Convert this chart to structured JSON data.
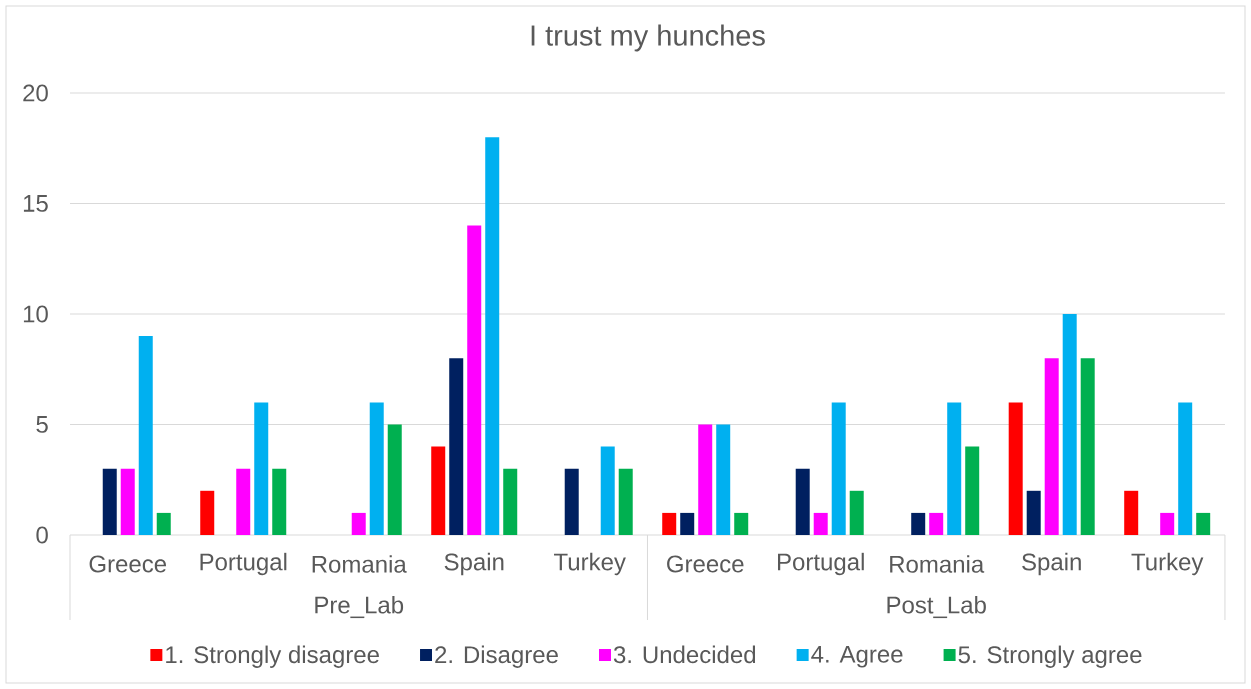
{
  "chart_data": {
    "type": "bar",
    "title": "I trust my hunches",
    "categories": [
      "Greece",
      "Portugal",
      "Romania",
      "Spain",
      "Turkey",
      "Greece",
      "Portugal",
      "Romania",
      "Spain",
      "Turkey"
    ],
    "annotations": [
      "Pre_Lab",
      "Post_Lab"
    ],
    "series": [
      {
        "name": "1. Strongly disagree",
        "color": "#ff0000",
        "values": [
          null,
          2,
          null,
          4,
          null,
          1,
          null,
          null,
          6,
          2
        ]
      },
      {
        "name": "2. Disagree",
        "color": "#002060",
        "values": [
          3,
          null,
          null,
          8,
          3,
          1,
          3,
          1,
          2,
          null
        ]
      },
      {
        "name": "3. Undecided",
        "color": "#ff00ff",
        "values": [
          3,
          3,
          1,
          14,
          null,
          5,
          1,
          1,
          8,
          1
        ]
      },
      {
        "name": "4. Agree",
        "color": "#00b0f0",
        "values": [
          9,
          6,
          6,
          18,
          4,
          5,
          6,
          6,
          10,
          6
        ]
      },
      {
        "name": "5. Strongly agree",
        "color": "#00b050",
        "values": [
          1,
          3,
          5,
          3,
          3,
          1,
          2,
          4,
          8,
          1
        ]
      }
    ],
    "ylim": [
      0,
      20
    ],
    "yticks": [
      0,
      5,
      10,
      15,
      20
    ],
    "grid": "y",
    "legend": "bottom"
  }
}
